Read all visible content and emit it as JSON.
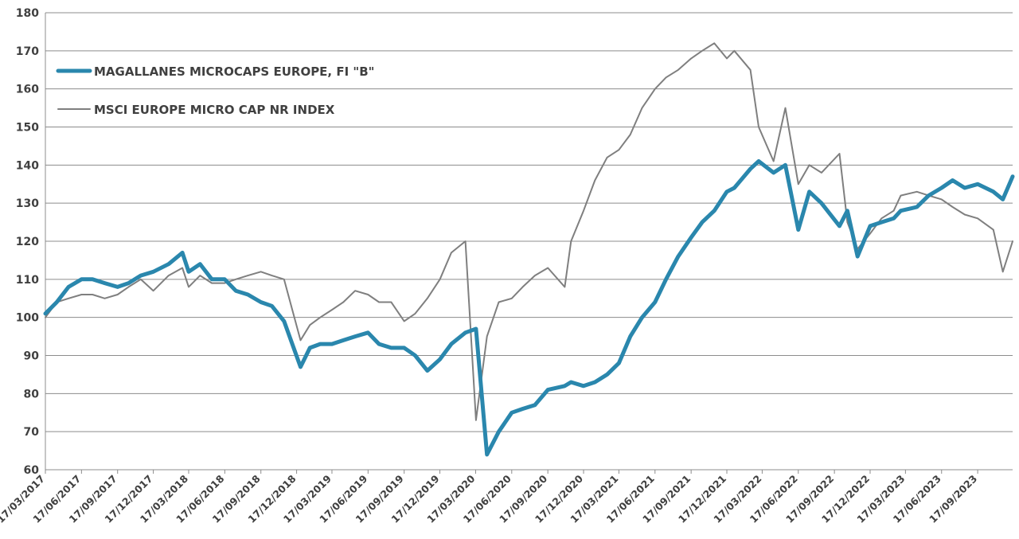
{
  "chart_data": {
    "type": "line",
    "title": "",
    "xlabel": "",
    "ylabel": "",
    "ylim": [
      60,
      180
    ],
    "yticks": [
      "60",
      "70",
      "80",
      "90",
      "100",
      "110",
      "120",
      "130",
      "140",
      "150",
      "160",
      "170",
      "180"
    ],
    "xticks": [
      "17/03/2017",
      "17/06/2017",
      "17/09/2017",
      "17/12/2017",
      "17/03/2018",
      "17/06/2018",
      "17/09/2018",
      "17/12/2018",
      "17/03/2019",
      "17/06/2019",
      "17/09/2019",
      "17/12/2019",
      "17/03/2020",
      "17/06/2020",
      "17/09/2020",
      "17/12/2020",
      "17/03/2021",
      "17/06/2021",
      "17/09/2021",
      "17/12/2021",
      "17/03/2022",
      "17/06/2022",
      "17/09/2022",
      "17/12/2022",
      "17/03/2023",
      "17/06/2023",
      "17/09/2023"
    ],
    "x": [
      "2017-03-17",
      "2017-04-15",
      "2017-05-15",
      "2017-06-17",
      "2017-07-15",
      "2017-08-15",
      "2017-09-17",
      "2017-10-15",
      "2017-11-15",
      "2017-12-17",
      "2018-01-25",
      "2018-03-01",
      "2018-03-17",
      "2018-04-15",
      "2018-05-15",
      "2018-06-17",
      "2018-07-15",
      "2018-08-15",
      "2018-09-17",
      "2018-10-15",
      "2018-11-15",
      "2018-12-27",
      "2019-01-20",
      "2019-02-15",
      "2019-03-17",
      "2019-04-15",
      "2019-05-15",
      "2019-06-17",
      "2019-07-15",
      "2019-08-15",
      "2019-09-17",
      "2019-10-15",
      "2019-11-15",
      "2019-12-17",
      "2020-01-15",
      "2020-02-20",
      "2020-03-18",
      "2020-04-15",
      "2020-05-15",
      "2020-06-17",
      "2020-07-15",
      "2020-08-15",
      "2020-09-17",
      "2020-10-30",
      "2020-11-15",
      "2020-12-17",
      "2021-01-15",
      "2021-02-15",
      "2021-03-17",
      "2021-04-15",
      "2021-05-15",
      "2021-06-17",
      "2021-07-15",
      "2021-08-15",
      "2021-09-17",
      "2021-10-15",
      "2021-11-15",
      "2021-12-17",
      "2022-01-05",
      "2022-02-15",
      "2022-03-08",
      "2022-04-15",
      "2022-05-15",
      "2022-06-17",
      "2022-07-15",
      "2022-08-15",
      "2022-09-30",
      "2022-10-20",
      "2022-11-15",
      "2022-12-17",
      "2023-01-15",
      "2023-02-15",
      "2023-03-05",
      "2023-04-15",
      "2023-05-15",
      "2023-06-17",
      "2023-07-15",
      "2023-08-15",
      "2023-09-17",
      "2023-10-27",
      "2023-11-20",
      "2023-12-15"
    ],
    "series": [
      {
        "name": "MAGALLANES MICROCAPS EUROPE, FI \"B\"",
        "color": "#2a87ad",
        "values": [
          101,
          104,
          108,
          110,
          110,
          109,
          108,
          109,
          111,
          112,
          114,
          117,
          112,
          114,
          110,
          110,
          107,
          106,
          104,
          103,
          99,
          87,
          92,
          93,
          93,
          94,
          95,
          96,
          93,
          92,
          92,
          90,
          86,
          89,
          93,
          96,
          97,
          64,
          70,
          75,
          76,
          77,
          81,
          82,
          83,
          82,
          83,
          85,
          88,
          95,
          100,
          104,
          110,
          116,
          121,
          125,
          128,
          133,
          134,
          139,
          141,
          138,
          140,
          123,
          133,
          130,
          124,
          128,
          116,
          124,
          125,
          126,
          128,
          129,
          132,
          134,
          136,
          134,
          135,
          133,
          131,
          137
        ]
      },
      {
        "name": "MSCI EUROPE MICRO CAP NR INDEX",
        "color": "#7f7f7f",
        "values": [
          100,
          104,
          105,
          106,
          106,
          105,
          106,
          108,
          110,
          107,
          111,
          113,
          108,
          111,
          109,
          109,
          110,
          111,
          112,
          111,
          110,
          94,
          98,
          100,
          102,
          104,
          107,
          106,
          104,
          104,
          99,
          101,
          105,
          110,
          117,
          120,
          73,
          95,
          104,
          105,
          108,
          111,
          113,
          108,
          120,
          128,
          136,
          142,
          144,
          148,
          155,
          160,
          163,
          165,
          168,
          170,
          172,
          168,
          170,
          165,
          150,
          141,
          155,
          135,
          140,
          138,
          143,
          125,
          118,
          122,
          126,
          128,
          132,
          133,
          132,
          131,
          129,
          127,
          126,
          123,
          112,
          120
        ]
      }
    ],
    "legend_position": "top-left",
    "grid": true
  }
}
